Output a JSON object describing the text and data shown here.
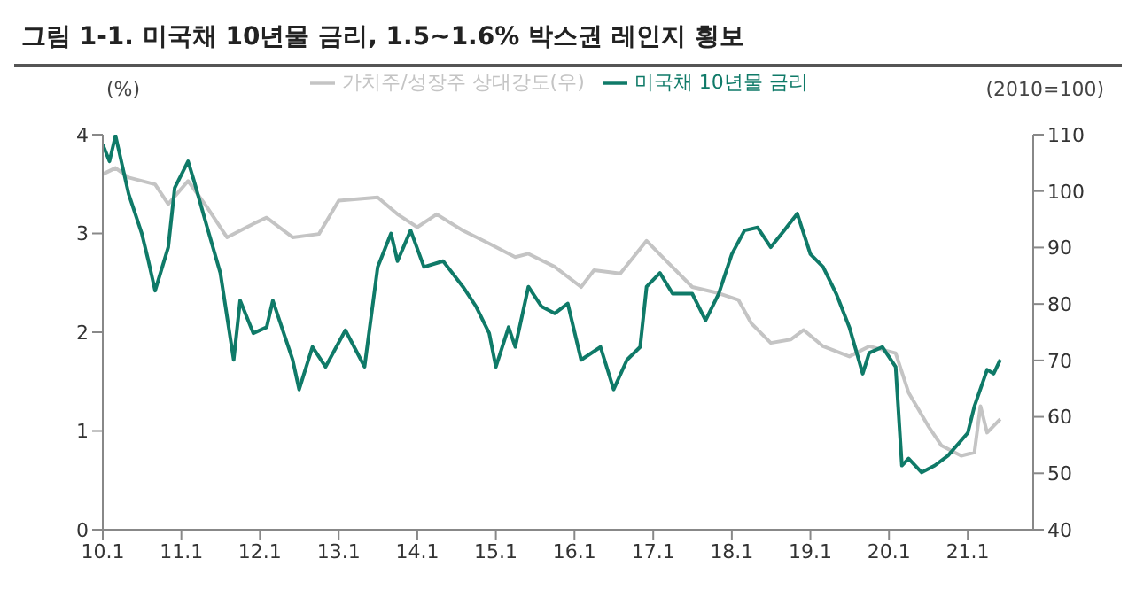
{
  "chart_data": {
    "type": "line",
    "title": "그림 1-1.  미국채 10년물 금리, 1.5~1.6% 박스권 레인지 횡보",
    "ylabel": "(%)",
    "y2label": "(2010=100)",
    "xlim": [
      "2010-01",
      "2021-11"
    ],
    "xticks": [
      {
        "value": "2010-01",
        "label": "10.1"
      },
      {
        "value": "2011-01",
        "label": "11.1"
      },
      {
        "value": "2012-01",
        "label": "12.1"
      },
      {
        "value": "2013-01",
        "label": "13.1"
      },
      {
        "value": "2014-01",
        "label": "14.1"
      },
      {
        "value": "2015-01",
        "label": "15.1"
      },
      {
        "value": "2016-01",
        "label": "16.1"
      },
      {
        "value": "2017-01",
        "label": "17.1"
      },
      {
        "value": "2018-01",
        "label": "18.1"
      },
      {
        "value": "2019-01",
        "label": "19.1"
      },
      {
        "value": "2020-01",
        "label": "20.1"
      },
      {
        "value": "2021-01",
        "label": "21.1"
      }
    ],
    "ylim": [
      0,
      4
    ],
    "yticks": [
      0,
      1,
      2,
      3,
      4
    ],
    "y2lim": [
      40,
      110
    ],
    "y2ticks": [
      40,
      50,
      60,
      70,
      80,
      90,
      100,
      110
    ],
    "legend": "top",
    "grid": false,
    "marker": "none",
    "line_style": "solid",
    "series": [
      {
        "name": "미국채 10년물 금리",
        "color": "#0f7a68",
        "x": [
          "2010-01",
          "2010-02",
          "2010-03",
          "2010-05",
          "2010-07",
          "2010-08",
          "2010-09",
          "2010-11",
          "2010-12",
          "2011-02",
          "2011-03",
          "2011-05",
          "2011-07",
          "2011-09",
          "2011-10",
          "2011-12",
          "2012-02",
          "2012-03",
          "2012-06",
          "2012-07",
          "2012-09",
          "2012-11",
          "2013-02",
          "2013-05",
          "2013-07",
          "2013-09",
          "2013-10",
          "2013-12",
          "2014-02",
          "2014-05",
          "2014-08",
          "2014-10",
          "2014-12",
          "2015-01",
          "2015-03",
          "2015-04",
          "2015-06",
          "2015-08",
          "2015-10",
          "2015-12",
          "2016-02",
          "2016-05",
          "2016-07",
          "2016-09",
          "2016-11",
          "2016-12",
          "2017-02",
          "2017-04",
          "2017-07",
          "2017-09",
          "2017-11",
          "2018-01",
          "2018-03",
          "2018-05",
          "2018-07",
          "2018-09",
          "2018-11",
          "2019-01",
          "2019-03",
          "2019-05",
          "2019-07",
          "2019-09",
          "2019-10",
          "2019-12",
          "2020-02",
          "2020-03",
          "2020-04",
          "2020-06",
          "2020-08",
          "2020-10",
          "2021-01",
          "2021-02",
          "2021-04",
          "2021-05",
          "2021-06"
        ],
        "values": [
          3.9,
          3.73,
          3.99,
          3.4,
          3.0,
          2.72,
          2.42,
          2.86,
          3.46,
          3.73,
          3.53,
          3.06,
          2.6,
          1.72,
          2.32,
          1.99,
          2.05,
          2.32,
          1.72,
          1.42,
          1.85,
          1.65,
          2.02,
          1.65,
          2.66,
          3.0,
          2.72,
          3.03,
          2.66,
          2.72,
          2.46,
          2.26,
          1.99,
          1.65,
          2.05,
          1.85,
          2.46,
          2.26,
          2.19,
          2.29,
          1.72,
          1.85,
          1.42,
          1.72,
          1.85,
          2.46,
          2.6,
          2.39,
          2.39,
          2.12,
          2.39,
          2.79,
          3.03,
          3.06,
          2.86,
          3.03,
          3.2,
          2.79,
          2.66,
          2.39,
          2.05,
          1.58,
          1.79,
          1.85,
          1.65,
          0.65,
          0.72,
          0.58,
          0.65,
          0.75,
          0.98,
          1.25,
          1.62,
          1.58,
          1.72
        ]
      },
      {
        "name": "가치주/성장주 상대강도(우)",
        "color": "#c4c4c4",
        "axis": "y2",
        "x": [
          "2010-01",
          "2010-03",
          "2010-05",
          "2010-09",
          "2010-11",
          "2011-02",
          "2011-05",
          "2011-08",
          "2011-12",
          "2012-02",
          "2012-06",
          "2012-10",
          "2013-01",
          "2013-07",
          "2013-10",
          "2014-01",
          "2014-04",
          "2014-08",
          "2014-12",
          "2015-04",
          "2015-06",
          "2015-10",
          "2016-02",
          "2016-04",
          "2016-08",
          "2016-12",
          "2017-03",
          "2017-07",
          "2017-11",
          "2018-02",
          "2018-04",
          "2018-07",
          "2018-10",
          "2018-12",
          "2019-03",
          "2019-07",
          "2019-10",
          "2020-02",
          "2020-04",
          "2020-07",
          "2020-09",
          "2020-12",
          "2021-02",
          "2021-03",
          "2021-04",
          "2021-06"
        ],
        "values": [
          103,
          104.1,
          102.4,
          101.2,
          97.7,
          101.8,
          97.1,
          91.8,
          94.2,
          95.3,
          91.8,
          92.4,
          98.3,
          98.9,
          95.9,
          93.6,
          95.9,
          93.0,
          90.7,
          88.3,
          88.9,
          86.6,
          83.0,
          86.0,
          85.4,
          91.2,
          87.7,
          83.0,
          81.9,
          80.7,
          76.6,
          73.1,
          73.7,
          75.4,
          72.5,
          70.7,
          72.5,
          71.3,
          64.3,
          58.4,
          54.9,
          53.1,
          53.7,
          61.9,
          57.2,
          59.6
        ]
      }
    ]
  }
}
